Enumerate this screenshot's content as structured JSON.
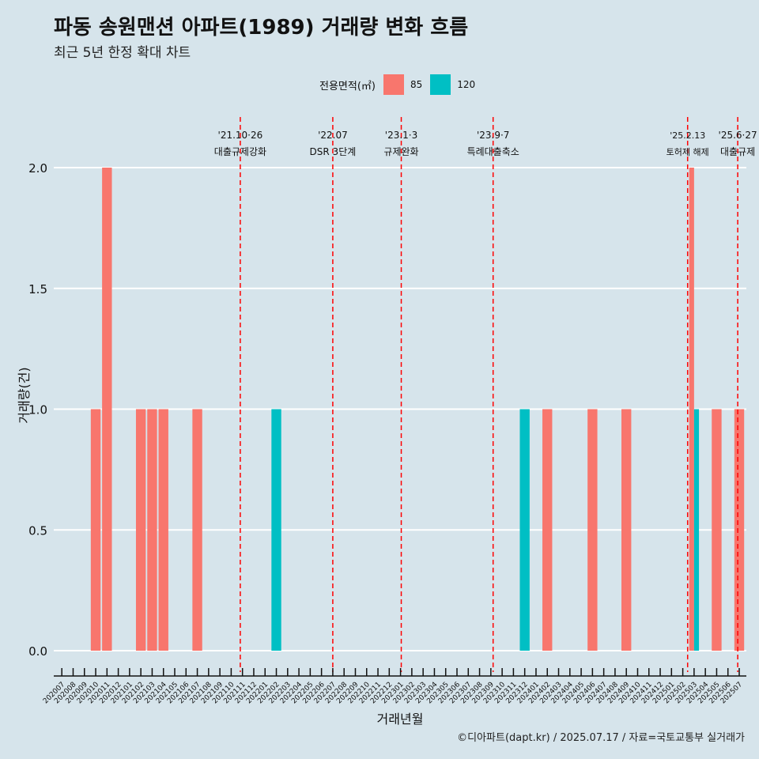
{
  "title": "파동 송원맨션 아파트(1989) 거래량 변화 흐름",
  "subtitle": "최근 5년 한정 확대 차트",
  "caption": "©디아파트(dapt.kr) / 2025.07.17 / 자료=국토교통부 실거래가",
  "legend": {
    "title": "전용면적(㎡)",
    "items": [
      {
        "label": "85",
        "color": "#f8766d"
      },
      {
        "label": "120",
        "color": "#00bfc4"
      }
    ]
  },
  "chart_data": {
    "type": "bar",
    "xlabel": "거래년월",
    "ylabel": "거래량(건)",
    "ylim": [
      0,
      2
    ],
    "yticks": [
      "0.0",
      "0.5",
      "1.0",
      "1.5",
      "2.0"
    ],
    "categories": [
      "202007",
      "202008",
      "202009",
      "202010",
      "202011",
      "202012",
      "202101",
      "202102",
      "202103",
      "202104",
      "202105",
      "202106",
      "202107",
      "202108",
      "202109",
      "202110",
      "202111",
      "202112",
      "202201",
      "202202",
      "202203",
      "202204",
      "202205",
      "202206",
      "202207",
      "202208",
      "202209",
      "202210",
      "202211",
      "202212",
      "202301",
      "202302",
      "202303",
      "202304",
      "202305",
      "202306",
      "202307",
      "202308",
      "202309",
      "202310",
      "202311",
      "202312",
      "202401",
      "202402",
      "202403",
      "202404",
      "202405",
      "202406",
      "202407",
      "202408",
      "202409",
      "202410",
      "202411",
      "202412",
      "202501",
      "202502",
      "202503",
      "202504",
      "202505",
      "202506",
      "202507"
    ],
    "series": [
      {
        "name": "85",
        "color": "#f8766d",
        "points": [
          {
            "x": "202010",
            "y": 1
          },
          {
            "x": "202011",
            "y": 2
          },
          {
            "x": "202102",
            "y": 1
          },
          {
            "x": "202103",
            "y": 1
          },
          {
            "x": "202104",
            "y": 1
          },
          {
            "x": "202107",
            "y": 1
          },
          {
            "x": "202402",
            "y": 1
          },
          {
            "x": "202406",
            "y": 1
          },
          {
            "x": "202409",
            "y": 1
          },
          {
            "x": "202503",
            "y": 2
          },
          {
            "x": "202505",
            "y": 1
          },
          {
            "x": "202507",
            "y": 1
          }
        ]
      },
      {
        "name": "120",
        "color": "#00bfc4",
        "points": [
          {
            "x": "202202",
            "y": 1
          },
          {
            "x": "202312",
            "y": 1
          },
          {
            "x": "202503",
            "y": 1
          }
        ]
      }
    ],
    "annotations": [
      {
        "x": "2021-10-26",
        "date": "'21.10·26",
        "label": "대출규제강화"
      },
      {
        "x": "2022-07-01",
        "date": "'22.07",
        "label": "DSR 3단계"
      },
      {
        "x": "2023-01-03",
        "date": "'23.1·3",
        "label": "규제완화"
      },
      {
        "x": "2023-09-07",
        "date": "'23.9·7",
        "label": "특례대출축소"
      },
      {
        "x": "2025-02-13",
        "date": "'25.2.13",
        "label": "토허제 해제"
      },
      {
        "x": "2025-06-27",
        "date": "'25.6·27",
        "label": "대출규제"
      }
    ],
    "grid": true,
    "legend_position": "top"
  }
}
